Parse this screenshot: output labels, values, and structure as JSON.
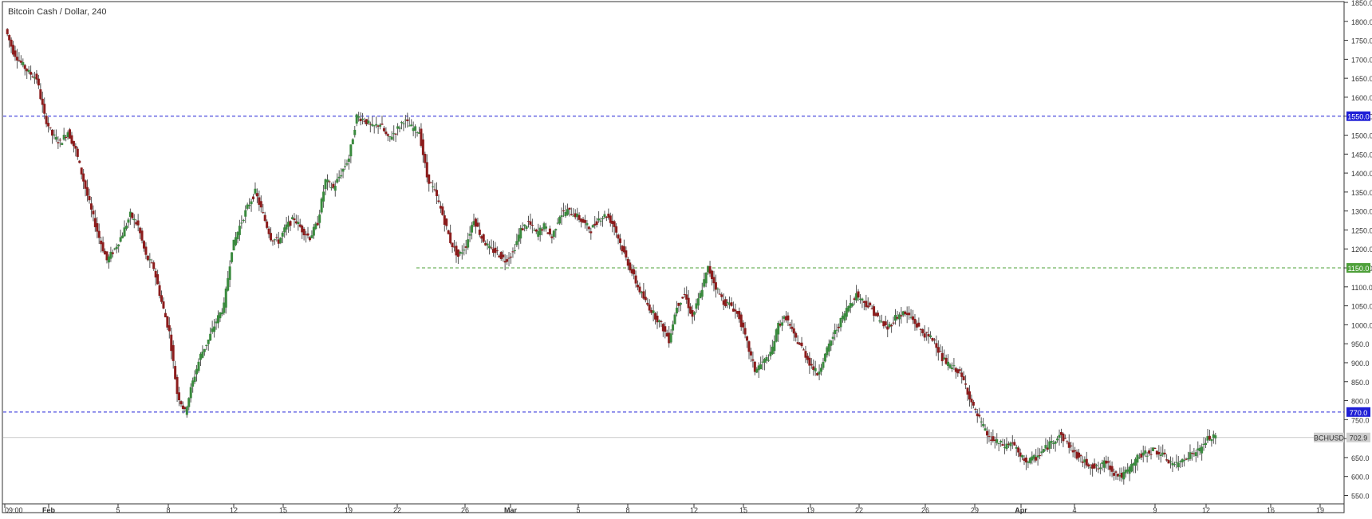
{
  "window": {
    "title": "Bitcoin Cash / Dollar, 240"
  },
  "colors": {
    "up": "#3a8a3e",
    "down": "#8b1c1c",
    "blue_level": "#1f1fd6",
    "green_level": "#4ea03a",
    "frame": "#333333",
    "price_line": "#c9c9c9",
    "price_badge": "#cfcfcf"
  },
  "chart_data": {
    "type": "candlestick",
    "title": "Bitcoin Cash / Dollar, 240",
    "ylim": [
      530,
      1850
    ],
    "y_ticks": [
      550,
      600,
      650,
      700,
      750,
      800,
      850,
      900,
      950,
      1000,
      1050,
      1100,
      1150,
      1200,
      1250,
      1300,
      1350,
      1400,
      1450,
      1500,
      1550,
      1600,
      1650,
      1700,
      1750,
      1800,
      1850
    ],
    "x_ticks": [
      "09:00",
      "Feb",
      "5",
      "8",
      "12",
      "15",
      "19",
      "22",
      "26",
      "Mar",
      "5",
      "8",
      "12",
      "15",
      "19",
      "22",
      "26",
      "29",
      "Apr",
      "4",
      "9",
      "12",
      "16",
      "19"
    ],
    "horizontal_levels": [
      {
        "value": 1550.0,
        "label": "1550.0",
        "color": "blue",
        "start": "full"
      },
      {
        "value": 1150.0,
        "label": "1150.0",
        "color": "green",
        "start": "22"
      },
      {
        "value": 770.0,
        "label": "770.0",
        "color": "blue",
        "start": "full"
      }
    ],
    "current_price": {
      "symbol": "BCHUSD",
      "value": "702.9"
    },
    "price_path": [
      1780,
      1720,
      1690,
      1665,
      1650,
      1550,
      1500,
      1480,
      1510,
      1460,
      1380,
      1300,
      1230,
      1170,
      1200,
      1240,
      1290,
      1260,
      1180,
      1150,
      1060,
      980,
      820,
      770,
      850,
      920,
      960,
      1010,
      1050,
      1200,
      1260,
      1310,
      1350,
      1290,
      1230,
      1220,
      1260,
      1280,
      1250,
      1230,
      1270,
      1380,
      1360,
      1400,
      1440,
      1550,
      1540,
      1520,
      1530,
      1490,
      1510,
      1540,
      1520,
      1510,
      1390,
      1350,
      1290,
      1220,
      1180,
      1210,
      1280,
      1230,
      1200,
      1190,
      1170,
      1190,
      1250,
      1270,
      1240,
      1260,
      1230,
      1290,
      1300,
      1290,
      1270,
      1250,
      1280,
      1290,
      1260,
      1200,
      1150,
      1100,
      1060,
      1030,
      1000,
      960,
      1050,
      1080,
      1020,
      1080,
      1150,
      1100,
      1060,
      1050,
      1020,
      950,
      880,
      900,
      920,
      1000,
      1020,
      970,
      940,
      900,
      870,
      920,
      970,
      1010,
      1050,
      1080,
      1060,
      1040,
      1010,
      990,
      1020,
      1030,
      1020,
      990,
      970,
      960,
      910,
      890,
      880,
      840,
      780,
      740,
      700,
      690,
      680,
      690,
      650,
      640,
      650,
      670,
      690,
      710,
      690,
      660,
      640,
      630,
      620,
      640,
      610,
      600,
      620,
      650,
      660,
      670,
      660,
      640,
      630,
      650,
      660,
      670,
      700,
      702.9
    ]
  }
}
